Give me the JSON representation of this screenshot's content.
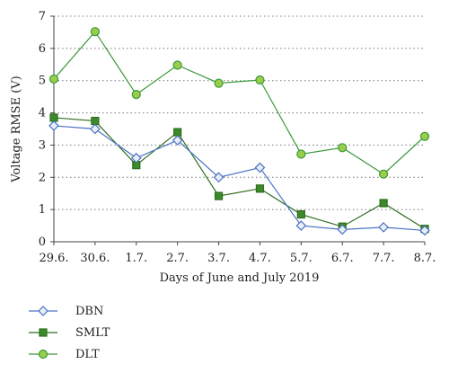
{
  "chart_data": {
    "type": "line",
    "title": "",
    "xlabel": "Days of June and July 2019",
    "ylabel": "Voltage RMSE (V)",
    "categories": [
      "29.6.",
      "30.6.",
      "1.7.",
      "2.7.",
      "3.7.",
      "4.7.",
      "5.7.",
      "6.7.",
      "7.7.",
      "8.7."
    ],
    "ylim": [
      0,
      7
    ],
    "yticks": [
      "0",
      "1",
      "2",
      "3",
      "4",
      "5",
      "6",
      "7"
    ],
    "grid": "horizontal dotted",
    "legend_position": "bottom-left",
    "series": [
      {
        "name": "DBN",
        "marker": "diamond",
        "color": "#4a72c4",
        "fill": "#e8eef8",
        "values": [
          3.6,
          3.5,
          2.6,
          3.15,
          2.0,
          2.3,
          0.5,
          0.38,
          0.45,
          0.35
        ]
      },
      {
        "name": "SMLT",
        "marker": "square",
        "color": "#2e6e1e",
        "fill": "#3d8a2a",
        "values": [
          3.85,
          3.75,
          2.38,
          3.4,
          1.42,
          1.65,
          0.85,
          0.47,
          1.2,
          0.4
        ]
      },
      {
        "name": "DLT",
        "marker": "circle",
        "color": "#3a9a3a",
        "fill": "#9acd4a",
        "values": [
          5.05,
          6.52,
          4.57,
          5.48,
          4.92,
          5.02,
          2.72,
          2.92,
          2.1,
          3.27
        ]
      }
    ]
  }
}
